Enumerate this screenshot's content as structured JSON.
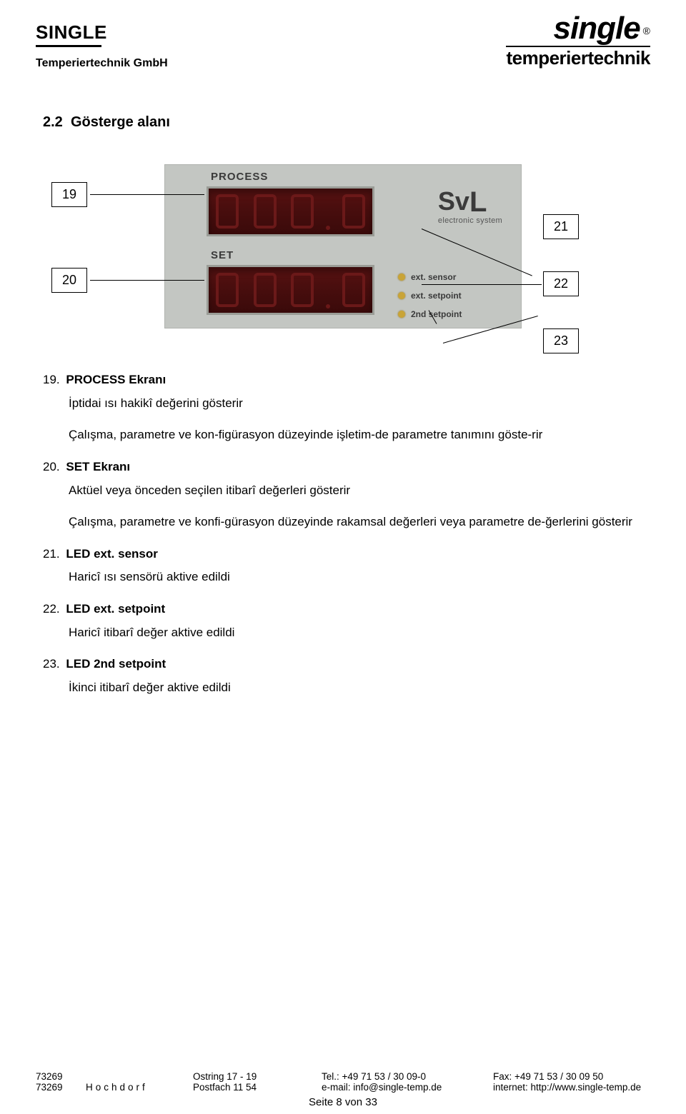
{
  "header": {
    "brand_left": "SINGLE",
    "subtitle_left": "Temperiertechnik GmbH",
    "logo_main": "single",
    "logo_registered": "®",
    "logo_sub": "temperiertechnik"
  },
  "section": {
    "number": "2.2",
    "title": "Gösterge alanı"
  },
  "device": {
    "label_process": "PROCESS",
    "label_set": "SET",
    "svl_logo_sv": "Sv",
    "svl_logo_l": "L",
    "svl_sub": "electronic system",
    "led1": "ext. sensor",
    "led2": "ext. setpoint",
    "led3": "2nd setpoint",
    "panel_bg": "#c3c6c2",
    "display_bg": "#4a0e0e",
    "led_color": "#c9a437"
  },
  "callouts": {
    "c19": "19",
    "c20": "20",
    "c21": "21",
    "c22": "22",
    "c23": "23"
  },
  "items": [
    {
      "num": "19.",
      "title": "PROCESS Ekranı",
      "paras": [
        "İptidai ısı hakikî değerini gösterir",
        "Çalışma, parametre ve kon-figürasyon düzeyinde işletim-de parametre tanımını göste-rir"
      ]
    },
    {
      "num": "20.",
      "title": "SET Ekranı",
      "paras": [
        "Aktüel veya önceden seçilen itibarî değerleri gösterir",
        "Çalışma, parametre ve konfi-gürasyon düzeyinde rakamsal değerleri veya parametre de-ğerlerini gösterir"
      ]
    },
    {
      "num": "21.",
      "title": "LED ext. sensor",
      "paras": [
        "Haricî ısı sensörü aktive edildi"
      ]
    },
    {
      "num": "22.",
      "title": "LED ext. setpoint",
      "paras": [
        "Haricî itibarî değer aktive edildi"
      ]
    },
    {
      "num": "23.",
      "title": "LED 2nd setpoint",
      "paras": [
        "İkinci itibarî değer aktive edildi"
      ]
    }
  ],
  "footer": {
    "row1": {
      "col1": "73269",
      "col2": "",
      "col3": "Ostring 17 - 19",
      "col4": "Tel.: +49 71 53 / 30 09-0",
      "col5": "Fax: +49 71 53 / 30 09 50"
    },
    "row2": {
      "col1": "73269",
      "col2": "Hochdorf",
      "col3": "Postfach 11 54",
      "col4": "e-mail: info@single-temp.de",
      "col5": "internet: http://www.single-temp.de"
    },
    "page": "Seite 8 von 33"
  }
}
